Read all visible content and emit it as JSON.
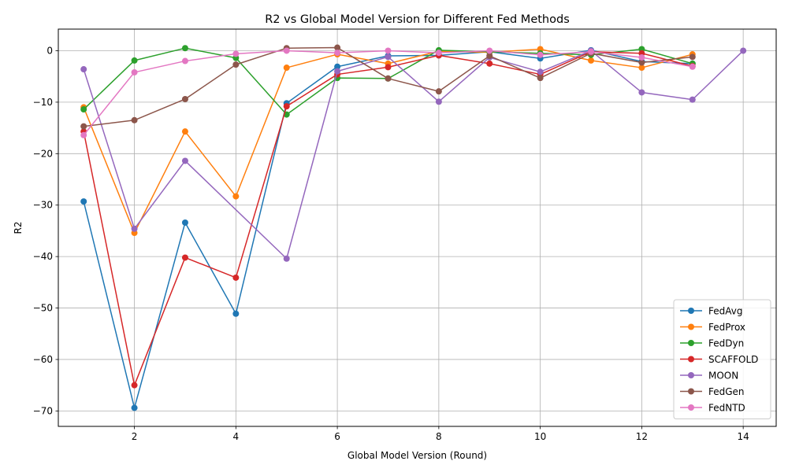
{
  "chart_data": {
    "type": "line",
    "title": "R2 vs Global Model Version for Different Fed Methods",
    "xlabel": "Global Model Version (Round)",
    "ylabel": "R2",
    "xlim": [
      0.5,
      14.65
    ],
    "ylim": [
      -73,
      4.2
    ],
    "xticks": [
      2,
      4,
      6,
      8,
      10,
      12,
      14
    ],
    "yticks": [
      -70,
      -60,
      -50,
      -40,
      -30,
      -20,
      -10,
      0
    ],
    "grid": true,
    "legend_position": "bottom-right",
    "series": [
      {
        "name": "FedAvg",
        "color": "#1f77b4",
        "x": [
          1,
          2,
          3,
          4,
          5,
          6,
          7,
          8,
          9,
          10,
          11,
          12,
          13
        ],
        "y": [
          -29.3,
          -69.4,
          -33.4,
          -51.1,
          -10.2,
          -3.1,
          -1.0,
          -0.9,
          -0.2,
          -1.5,
          0.1,
          -2.1,
          -2.5
        ]
      },
      {
        "name": "FedProx",
        "color": "#ff7f0e",
        "x": [
          1,
          2,
          3,
          4,
          5,
          6,
          7,
          8,
          9,
          10,
          11,
          12,
          13
        ],
        "y": [
          -11.0,
          -35.4,
          -15.7,
          -28.3,
          -3.3,
          -0.7,
          -2.5,
          -0.1,
          -0.3,
          0.3,
          -1.9,
          -3.3,
          -0.7
        ]
      },
      {
        "name": "FedDyn",
        "color": "#2ca02c",
        "x": [
          1,
          2,
          3,
          4,
          5,
          6,
          7,
          8,
          9,
          10,
          11,
          12,
          13
        ],
        "y": [
          -11.4,
          -1.9,
          0.5,
          -1.4,
          -12.4,
          -5.3,
          -5.4,
          0.1,
          -0.2,
          -0.5,
          -0.8,
          0.3,
          -2.5
        ]
      },
      {
        "name": "SCAFFOLD",
        "color": "#d62728",
        "x": [
          1,
          2,
          3,
          4,
          5,
          6,
          7,
          8,
          9,
          10,
          11,
          12,
          13
        ],
        "y": [
          -15.7,
          -65.0,
          -40.2,
          -44.1,
          -10.8,
          -4.6,
          -3.2,
          -0.9,
          -2.5,
          -4.6,
          -0.2,
          -0.5,
          -3.0
        ]
      },
      {
        "name": "MOON",
        "color": "#9467bd",
        "x": [
          1,
          2,
          3,
          5,
          6,
          7,
          8,
          9,
          10,
          11,
          12,
          13,
          14
        ],
        "y": [
          -3.6,
          -34.6,
          -21.4,
          -40.4,
          -4.0,
          -1.2,
          -9.9,
          -1.3,
          -4.1,
          0.0,
          -8.1,
          -9.5,
          0.0
        ]
      },
      {
        "name": "FedGen",
        "color": "#8c564b",
        "x": [
          1,
          2,
          3,
          4,
          5,
          6,
          7,
          8,
          9,
          10,
          11,
          12,
          13
        ],
        "y": [
          -14.7,
          -13.5,
          -9.4,
          -2.7,
          0.5,
          0.6,
          -5.4,
          -7.9,
          -1.0,
          -5.3,
          -0.5,
          -2.3,
          -1.2
        ]
      },
      {
        "name": "FedNTD",
        "color": "#e377c2",
        "x": [
          1,
          2,
          3,
          4,
          5,
          6,
          7,
          8,
          9,
          10,
          11,
          12,
          13
        ],
        "y": [
          -16.4,
          -4.2,
          -2.0,
          -0.6,
          0.0,
          -0.4,
          0.0,
          -0.4,
          0.0,
          -0.8,
          -0.2,
          -1.3,
          -3.1
        ]
      }
    ]
  }
}
